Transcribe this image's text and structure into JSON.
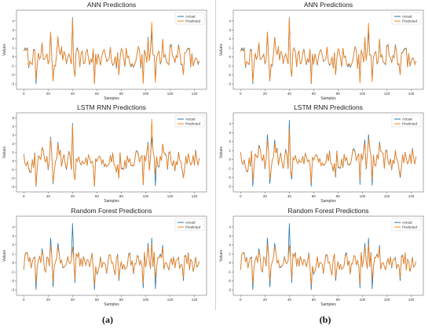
{
  "colors": {
    "actual": "#1f77b4",
    "predicted": "#ff7f0e"
  },
  "panels": [
    {
      "label": "(a)"
    },
    {
      "label": "(b)"
    }
  ],
  "chart_data": [
    {
      "type": "line",
      "panel": "(a)",
      "title": "ANN Predictions",
      "xlabel": "Samples",
      "ylabel": "Values",
      "xlim": [
        -6,
        150
      ],
      "ylim": [
        -3.6,
        5.2
      ],
      "xticks": [
        0,
        20,
        40,
        60,
        80,
        100,
        120,
        140
      ],
      "yticks": [
        -3,
        -2,
        -1,
        0,
        1,
        2,
        3,
        4
      ],
      "legend": "top-right",
      "series": [
        {
          "name": "Actual",
          "color": "#1f77b4"
        },
        {
          "name": "Predicted",
          "color": "#ff7f0e"
        }
      ],
      "spikes_actual": [
        [
          10,
          -3
        ],
        [
          15,
          1.6
        ],
        [
          22,
          2.8
        ],
        [
          24,
          -2.7
        ],
        [
          28,
          2.2
        ],
        [
          40,
          4.4
        ],
        [
          42,
          -2.2
        ],
        [
          58,
          -3.0
        ],
        [
          78,
          -2.0
        ],
        [
          98,
          -2.8
        ],
        [
          102,
          2.2
        ],
        [
          105,
          2.8
        ],
        [
          108,
          -2.4
        ],
        [
          114,
          2.0
        ],
        [
          131,
          -2.0
        ]
      ],
      "spikes_predicted": [
        [
          10,
          -2.6
        ],
        [
          15,
          1.6
        ],
        [
          22,
          2.8
        ],
        [
          24,
          -2.7
        ],
        [
          28,
          2.3
        ],
        [
          40,
          4.3
        ],
        [
          42,
          -2.2
        ],
        [
          58,
          -3.0
        ],
        [
          78,
          -2.0
        ],
        [
          98,
          -3.0
        ],
        [
          102,
          2.0
        ],
        [
          105,
          3.9
        ],
        [
          108,
          -2.9
        ],
        [
          114,
          2.0
        ],
        [
          131,
          -2.0
        ]
      ]
    },
    {
      "type": "line",
      "panel": "(b)",
      "title": "ANN Predictions",
      "xlabel": "Samples",
      "ylabel": "Values",
      "xlim": [
        -6,
        150
      ],
      "ylim": [
        -3.6,
        5.2
      ],
      "xticks": [
        0,
        20,
        40,
        60,
        80,
        100,
        120,
        140
      ],
      "yticks": [
        -3,
        -2,
        -1,
        0,
        1,
        2,
        3,
        4
      ],
      "legend": "top-right",
      "series": [
        {
          "name": "Actual",
          "color": "#1f77b4"
        },
        {
          "name": "Predicted",
          "color": "#ff7f0e"
        }
      ],
      "spikes_actual": [
        [
          10,
          -3
        ],
        [
          15,
          1.6
        ],
        [
          22,
          2.8
        ],
        [
          24,
          -2.7
        ],
        [
          28,
          2.2
        ],
        [
          40,
          4.4
        ],
        [
          42,
          -2.2
        ],
        [
          58,
          -3.0
        ],
        [
          78,
          -2.0
        ],
        [
          98,
          -2.8
        ],
        [
          102,
          2.2
        ],
        [
          105,
          2.8
        ],
        [
          108,
          -2.4
        ],
        [
          114,
          2.0
        ],
        [
          131,
          -2.0
        ]
      ],
      "spikes_predicted": [
        [
          10,
          -2.8
        ],
        [
          15,
          1.6
        ],
        [
          22,
          2.8
        ],
        [
          24,
          -2.6
        ],
        [
          28,
          2.2
        ],
        [
          40,
          4.3
        ],
        [
          42,
          -2.2
        ],
        [
          58,
          -2.9
        ],
        [
          78,
          -2.0
        ],
        [
          98,
          -2.9
        ],
        [
          102,
          2.1
        ],
        [
          105,
          3.8
        ],
        [
          108,
          -2.8
        ],
        [
          114,
          2.0
        ],
        [
          131,
          -2.0
        ]
      ]
    },
    {
      "type": "line",
      "panel": "(a)",
      "title": "LSTM RNN Predictions",
      "xlabel": "Samples",
      "ylabel": "Values",
      "xlim": [
        -6,
        150
      ],
      "ylim": [
        -3.6,
        5.6
      ],
      "xticks": [
        0,
        20,
        40,
        60,
        80,
        100,
        120,
        140
      ],
      "yticks": [
        -3,
        -2,
        -1,
        0,
        1,
        2,
        3,
        4,
        5
      ],
      "legend": "top-right",
      "series": [
        {
          "name": "Actual",
          "color": "#1f77b4"
        },
        {
          "name": "Predicted",
          "color": "#ff7f0e"
        }
      ],
      "spikes_actual": [
        [
          10,
          -3
        ],
        [
          15,
          1.6
        ],
        [
          22,
          2.8
        ],
        [
          24,
          -2.7
        ],
        [
          28,
          2.2
        ],
        [
          40,
          4.4
        ],
        [
          42,
          -2.2
        ],
        [
          58,
          -3.0
        ],
        [
          78,
          -2.0
        ],
        [
          98,
          -2.8
        ],
        [
          102,
          2.2
        ],
        [
          105,
          2.8
        ],
        [
          108,
          -2.9
        ],
        [
          114,
          2.0
        ],
        [
          131,
          -2.0
        ]
      ],
      "spikes_predicted": [
        [
          10,
          -2.9
        ],
        [
          15,
          1.6
        ],
        [
          22,
          2.6
        ],
        [
          24,
          -2.5
        ],
        [
          28,
          2.0
        ],
        [
          40,
          4.2
        ],
        [
          42,
          -2.2
        ],
        [
          58,
          -2.9
        ],
        [
          78,
          -2.0
        ],
        [
          98,
          -2.8
        ],
        [
          102,
          2.0
        ],
        [
          105,
          4.9
        ],
        [
          108,
          -1.6
        ],
        [
          114,
          2.0
        ],
        [
          131,
          -2.0
        ]
      ]
    },
    {
      "type": "line",
      "panel": "(b)",
      "title": "LSTM RNN Predictions",
      "xlabel": "Samples",
      "ylabel": "Values",
      "xlim": [
        -6,
        150
      ],
      "ylim": [
        -3.6,
        5.2
      ],
      "xticks": [
        0,
        20,
        40,
        60,
        80,
        100,
        120,
        140
      ],
      "yticks": [
        -3,
        -2,
        -1,
        0,
        1,
        2,
        3,
        4
      ],
      "legend": "top-right",
      "series": [
        {
          "name": "Actual",
          "color": "#1f77b4"
        },
        {
          "name": "Predicted",
          "color": "#ff7f0e"
        }
      ],
      "spikes_actual": [
        [
          10,
          -3
        ],
        [
          15,
          1.6
        ],
        [
          22,
          2.8
        ],
        [
          24,
          -2.7
        ],
        [
          28,
          2.2
        ],
        [
          40,
          4.4
        ],
        [
          42,
          -2.2
        ],
        [
          58,
          -3.0
        ],
        [
          78,
          -2.0
        ],
        [
          98,
          -2.8
        ],
        [
          102,
          2.2
        ],
        [
          105,
          2.8
        ],
        [
          108,
          -2.9
        ],
        [
          114,
          2.0
        ],
        [
          131,
          -2.0
        ]
      ],
      "spikes_predicted": [
        [
          10,
          -2.4
        ],
        [
          15,
          1.4
        ],
        [
          22,
          2.2
        ],
        [
          24,
          -2.2
        ],
        [
          28,
          1.8
        ],
        [
          40,
          3.4
        ],
        [
          42,
          -1.9
        ],
        [
          58,
          -2.6
        ],
        [
          78,
          -1.8
        ],
        [
          98,
          -2.3
        ],
        [
          102,
          1.8
        ],
        [
          105,
          2.4
        ],
        [
          108,
          -2.2
        ],
        [
          114,
          1.8
        ],
        [
          131,
          -1.8
        ]
      ]
    },
    {
      "type": "line",
      "panel": "(a)",
      "title": "Random Forest Predictions",
      "xlabel": "Samples",
      "ylabel": "Values",
      "xlim": [
        -6,
        150
      ],
      "ylim": [
        -3.6,
        5.2
      ],
      "xticks": [
        0,
        20,
        40,
        60,
        80,
        100,
        120,
        140
      ],
      "yticks": [
        -3,
        -2,
        -1,
        0,
        1,
        2,
        3,
        4
      ],
      "legend": "top-right",
      "series": [
        {
          "name": "Actual",
          "color": "#1f77b4"
        },
        {
          "name": "Predicted",
          "color": "#ff7f0e"
        }
      ],
      "spikes_actual": [
        [
          10,
          -3
        ],
        [
          15,
          1.6
        ],
        [
          22,
          2.8
        ],
        [
          24,
          -2.7
        ],
        [
          28,
          2.2
        ],
        [
          40,
          4.4
        ],
        [
          42,
          -2.2
        ],
        [
          58,
          -3.0
        ],
        [
          78,
          -2.0
        ],
        [
          98,
          -2.8
        ],
        [
          102,
          2.2
        ],
        [
          105,
          2.8
        ],
        [
          108,
          -2.9
        ],
        [
          114,
          2.0
        ],
        [
          131,
          -2.0
        ]
      ],
      "spikes_predicted": [
        [
          10,
          -2.2
        ],
        [
          15,
          1.3
        ],
        [
          22,
          2.0
        ],
        [
          24,
          -2.1
        ],
        [
          28,
          1.8
        ],
        [
          40,
          1.8
        ],
        [
          42,
          -1.8
        ],
        [
          58,
          -2.5
        ],
        [
          78,
          -1.7
        ],
        [
          98,
          -2.3
        ],
        [
          102,
          1.8
        ],
        [
          105,
          2.2
        ],
        [
          108,
          -1.7
        ],
        [
          114,
          1.7
        ],
        [
          131,
          -1.7
        ]
      ]
    },
    {
      "type": "line",
      "panel": "(b)",
      "title": "Random Forest Predictions",
      "xlabel": "Samples",
      "ylabel": "Values",
      "xlim": [
        -6,
        150
      ],
      "ylim": [
        -3.6,
        5.2
      ],
      "xticks": [
        0,
        20,
        40,
        60,
        80,
        100,
        120,
        140
      ],
      "yticks": [
        -3,
        -2,
        -1,
        0,
        1,
        2,
        3,
        4
      ],
      "legend": "top-right",
      "series": [
        {
          "name": "Actual",
          "color": "#1f77b4"
        },
        {
          "name": "Predicted",
          "color": "#ff7f0e"
        }
      ],
      "spikes_actual": [
        [
          10,
          -3
        ],
        [
          15,
          1.6
        ],
        [
          22,
          2.8
        ],
        [
          24,
          -2.7
        ],
        [
          28,
          2.2
        ],
        [
          40,
          4.4
        ],
        [
          42,
          -2.2
        ],
        [
          58,
          -3.0
        ],
        [
          78,
          -2.0
        ],
        [
          98,
          -2.8
        ],
        [
          102,
          2.2
        ],
        [
          105,
          2.8
        ],
        [
          108,
          -2.9
        ],
        [
          114,
          2.0
        ],
        [
          131,
          -2.0
        ]
      ],
      "spikes_predicted": [
        [
          10,
          -2.3
        ],
        [
          15,
          1.3
        ],
        [
          22,
          2.1
        ],
        [
          24,
          -2.0
        ],
        [
          28,
          1.8
        ],
        [
          40,
          2.0
        ],
        [
          42,
          -1.8
        ],
        [
          58,
          -2.5
        ],
        [
          78,
          -1.7
        ],
        [
          98,
          -2.3
        ],
        [
          102,
          1.8
        ],
        [
          105,
          2.2
        ],
        [
          108,
          -1.8
        ],
        [
          114,
          1.7
        ],
        [
          131,
          -1.7
        ]
      ]
    }
  ]
}
